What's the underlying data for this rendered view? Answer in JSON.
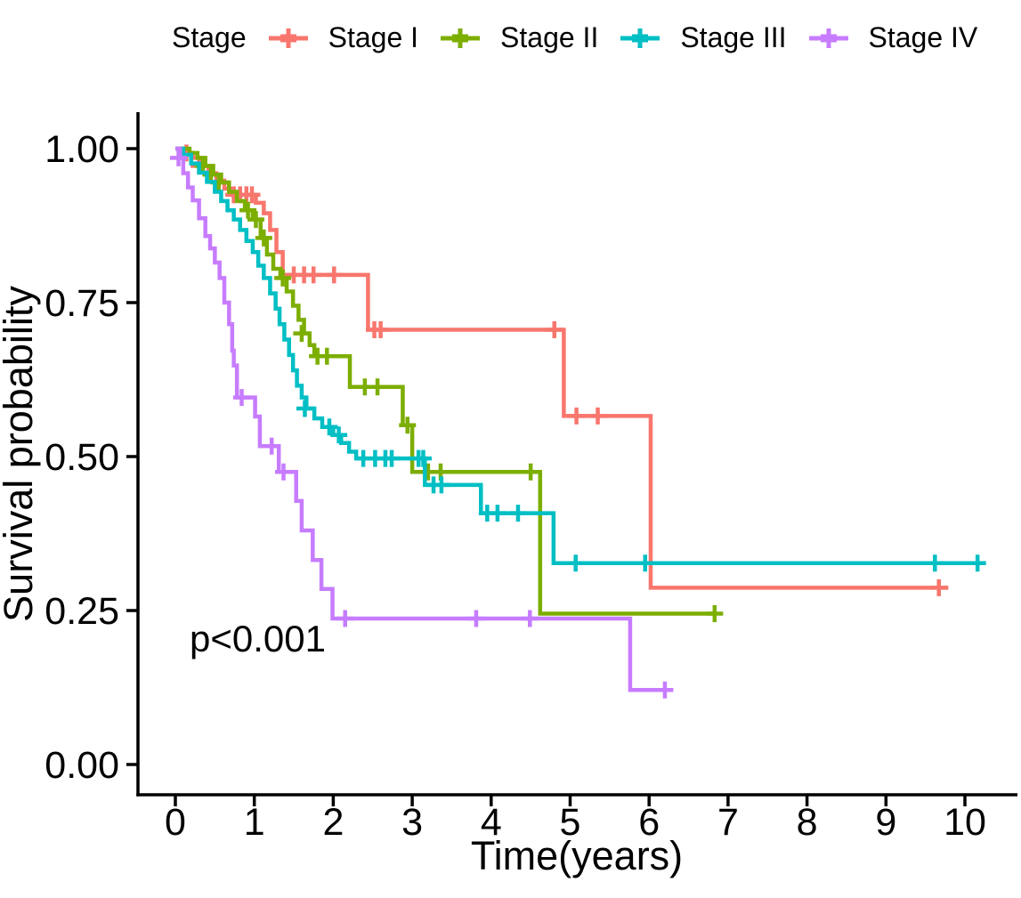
{
  "chart_data": {
    "type": "line",
    "subtype": "kaplan_meier_step",
    "title": "",
    "xlabel": "Time(years)",
    "ylabel": "Survival probability",
    "xlim": [
      0,
      10.6
    ],
    "ylim": [
      0,
      1.0
    ],
    "x_ticks": [
      0,
      1,
      2,
      3,
      4,
      5,
      6,
      7,
      8,
      9,
      10
    ],
    "x_tick_labels": [
      "0",
      "1",
      "2",
      "3",
      "4",
      "5",
      "6",
      "7",
      "8",
      "9",
      "10"
    ],
    "y_ticks": [
      0,
      0.25,
      0.5,
      0.75,
      1.0
    ],
    "y_tick_labels": [
      "0.00",
      "0.25",
      "0.50",
      "0.75",
      "1.00"
    ],
    "grid": false,
    "legend_position": "top",
    "legend_title": "Stage",
    "p_value_annotation": "p<0.001",
    "series": [
      {
        "name": "Stage I",
        "color": "#F8766D",
        "steps": [
          [
            0,
            1.0
          ],
          [
            0.1,
            0.993
          ],
          [
            0.22,
            0.985
          ],
          [
            0.32,
            0.972
          ],
          [
            0.42,
            0.96
          ],
          [
            0.52,
            0.948
          ],
          [
            0.62,
            0.935
          ],
          [
            0.7,
            0.925
          ],
          [
            1.02,
            0.912
          ],
          [
            1.12,
            0.895
          ],
          [
            1.2,
            0.868
          ],
          [
            1.28,
            0.832
          ],
          [
            1.36,
            0.795
          ],
          [
            2.44,
            0.706
          ],
          [
            4.92,
            0.566
          ],
          [
            6.02,
            0.287
          ]
        ],
        "end_time": 9.79,
        "censors": [
          [
            0.14,
            0.993
          ],
          [
            0.3,
            0.972
          ],
          [
            0.74,
            0.925
          ],
          [
            0.82,
            0.925
          ],
          [
            0.9,
            0.925
          ],
          [
            0.97,
            0.925
          ],
          [
            1.5,
            0.795
          ],
          [
            1.63,
            0.795
          ],
          [
            1.75,
            0.795
          ],
          [
            2.01,
            0.795
          ],
          [
            2.52,
            0.706
          ],
          [
            2.6,
            0.706
          ],
          [
            4.8,
            0.706
          ],
          [
            5.08,
            0.566
          ],
          [
            5.35,
            0.566
          ],
          [
            9.67,
            0.287
          ]
        ]
      },
      {
        "name": "Stage II",
        "color": "#7CAE00",
        "steps": [
          [
            0,
            1.0
          ],
          [
            0.18,
            0.993
          ],
          [
            0.28,
            0.985
          ],
          [
            0.38,
            0.972
          ],
          [
            0.48,
            0.958
          ],
          [
            0.58,
            0.945
          ],
          [
            0.68,
            0.93
          ],
          [
            0.78,
            0.915
          ],
          [
            0.88,
            0.9
          ],
          [
            0.98,
            0.885
          ],
          [
            1.08,
            0.855
          ],
          [
            1.16,
            0.828
          ],
          [
            1.24,
            0.805
          ],
          [
            1.33,
            0.79
          ],
          [
            1.41,
            0.768
          ],
          [
            1.49,
            0.745
          ],
          [
            1.56,
            0.722
          ],
          [
            1.63,
            0.7
          ],
          [
            1.7,
            0.681
          ],
          [
            1.76,
            0.663
          ],
          [
            2.21,
            0.613
          ],
          [
            2.88,
            0.551
          ],
          [
            3.0,
            0.475
          ],
          [
            4.62,
            0.245
          ]
        ],
        "end_time": 6.85,
        "censors": [
          [
            0.35,
            0.972
          ],
          [
            0.45,
            0.958
          ],
          [
            0.55,
            0.945
          ],
          [
            0.92,
            0.9
          ],
          [
            1.02,
            0.885
          ],
          [
            1.12,
            0.855
          ],
          [
            1.36,
            0.79
          ],
          [
            1.6,
            0.7
          ],
          [
            1.8,
            0.663
          ],
          [
            1.92,
            0.663
          ],
          [
            2.4,
            0.613
          ],
          [
            2.56,
            0.613
          ],
          [
            2.94,
            0.551
          ],
          [
            3.2,
            0.475
          ],
          [
            3.36,
            0.475
          ],
          [
            4.5,
            0.475
          ],
          [
            6.83,
            0.245
          ]
        ]
      },
      {
        "name": "Stage III",
        "color": "#00BFC4",
        "steps": [
          [
            0,
            1.0
          ],
          [
            0.1,
            0.99
          ],
          [
            0.2,
            0.976
          ],
          [
            0.3,
            0.961
          ],
          [
            0.4,
            0.946
          ],
          [
            0.5,
            0.93
          ],
          [
            0.58,
            0.915
          ],
          [
            0.66,
            0.9
          ],
          [
            0.74,
            0.885
          ],
          [
            0.82,
            0.868
          ],
          [
            0.9,
            0.85
          ],
          [
            0.98,
            0.832
          ],
          [
            1.05,
            0.81
          ],
          [
            1.12,
            0.79
          ],
          [
            1.2,
            0.765
          ],
          [
            1.27,
            0.74
          ],
          [
            1.32,
            0.715
          ],
          [
            1.38,
            0.69
          ],
          [
            1.44,
            0.665
          ],
          [
            1.49,
            0.64
          ],
          [
            1.54,
            0.615
          ],
          [
            1.6,
            0.596
          ],
          [
            1.66,
            0.578
          ],
          [
            1.76,
            0.562
          ],
          [
            1.86,
            0.548
          ],
          [
            2.0,
            0.535
          ],
          [
            2.1,
            0.522
          ],
          [
            2.2,
            0.508
          ],
          [
            2.29,
            0.497
          ],
          [
            3.16,
            0.454
          ],
          [
            3.87,
            0.408
          ],
          [
            4.79,
            0.327
          ]
        ],
        "end_time": 10.25,
        "censors": [
          [
            1.64,
            0.578
          ],
          [
            1.95,
            0.548
          ],
          [
            2.07,
            0.535
          ],
          [
            2.38,
            0.497
          ],
          [
            2.53,
            0.497
          ],
          [
            2.66,
            0.497
          ],
          [
            2.74,
            0.497
          ],
          [
            3.08,
            0.497
          ],
          [
            3.14,
            0.497
          ],
          [
            3.27,
            0.454
          ],
          [
            3.37,
            0.454
          ],
          [
            3.95,
            0.408
          ],
          [
            4.08,
            0.408
          ],
          [
            4.34,
            0.408
          ],
          [
            5.07,
            0.327
          ],
          [
            5.95,
            0.327
          ],
          [
            9.62,
            0.327
          ],
          [
            10.16,
            0.327
          ]
        ]
      },
      {
        "name": "Stage IV",
        "color": "#C77CFF",
        "steps": [
          [
            0,
            1.0
          ],
          [
            0.06,
            0.985
          ],
          [
            0.1,
            0.96
          ],
          [
            0.16,
            0.937
          ],
          [
            0.22,
            0.916
          ],
          [
            0.3,
            0.887
          ],
          [
            0.38,
            0.858
          ],
          [
            0.44,
            0.838
          ],
          [
            0.5,
            0.815
          ],
          [
            0.56,
            0.79
          ],
          [
            0.62,
            0.75
          ],
          [
            0.68,
            0.715
          ],
          [
            0.72,
            0.672
          ],
          [
            0.74,
            0.648
          ],
          [
            0.78,
            0.596
          ],
          [
            1.01,
            0.565
          ],
          [
            1.07,
            0.517
          ],
          [
            1.31,
            0.475
          ],
          [
            1.53,
            0.428
          ],
          [
            1.6,
            0.38
          ],
          [
            1.74,
            0.332
          ],
          [
            1.85,
            0.285
          ],
          [
            1.99,
            0.237
          ],
          [
            5.76,
            0.121
          ]
        ],
        "end_time": 6.27,
        "censors": [
          [
            0.04,
            0.985
          ],
          [
            0.84,
            0.596
          ],
          [
            1.22,
            0.517
          ],
          [
            1.37,
            0.475
          ],
          [
            2.15,
            0.237
          ],
          [
            3.81,
            0.237
          ],
          [
            4.49,
            0.237
          ],
          [
            6.2,
            0.121
          ]
        ]
      }
    ]
  }
}
